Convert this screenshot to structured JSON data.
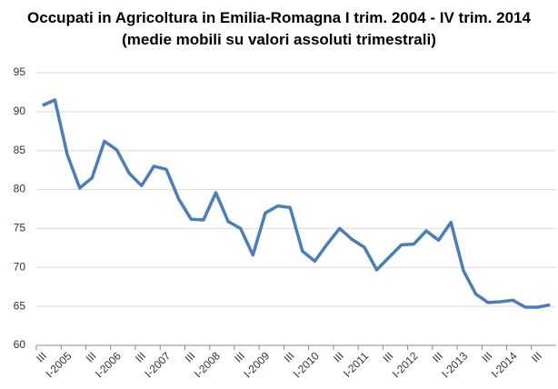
{
  "chart_data": {
    "type": "line",
    "title": "Occupati in Agricoltura in Emilia-Romagna I trim. 2004 - IV trim. 2014 (medie mobili su valori assoluti trimestrali)",
    "categories": [
      "III",
      null,
      "I-2005",
      null,
      "III",
      null,
      "I-2006",
      null,
      "III",
      null,
      "I-2007",
      null,
      "III",
      null,
      "I-2008",
      null,
      "III",
      null,
      "I-2009",
      null,
      "III",
      null,
      "I-2010",
      null,
      "III",
      null,
      "I-2011",
      null,
      "III",
      null,
      "I-2012",
      null,
      "III",
      null,
      "I-2013",
      null,
      "III",
      null,
      "I-2014",
      null,
      "III",
      null
    ],
    "values": [
      90.8,
      91.5,
      84.5,
      80.2,
      81.5,
      86.2,
      85.1,
      82.1,
      80.5,
      83.0,
      82.6,
      78.8,
      76.2,
      76.1,
      79.6,
      75.9,
      75.0,
      71.6,
      77.0,
      77.9,
      77.7,
      72.1,
      70.8,
      73.0,
      75.0,
      73.6,
      72.6,
      69.7,
      71.3,
      72.9,
      73.0,
      74.7,
      73.5,
      75.8,
      69.6,
      66.6,
      65.5,
      65.6,
      65.8,
      64.9,
      64.9,
      65.2
    ],
    "color": "#4a7ebb",
    "ylim": [
      60,
      95
    ],
    "yticks": [
      60,
      65,
      70,
      75,
      80,
      85,
      90,
      95
    ],
    "grid": true
  }
}
